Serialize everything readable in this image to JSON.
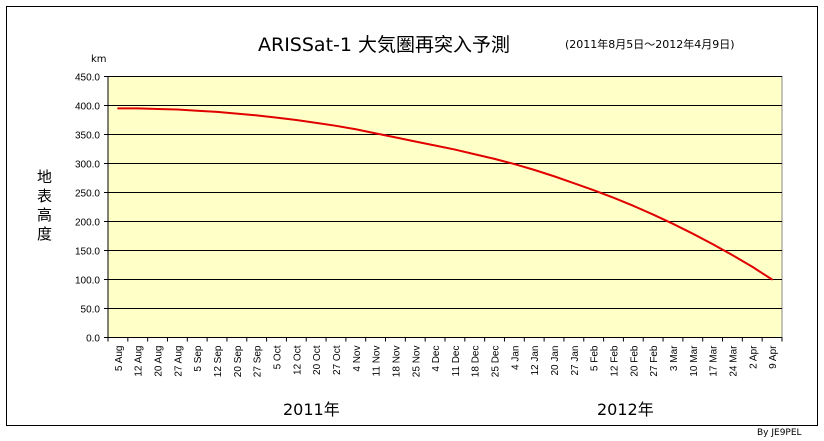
{
  "chart_data": {
    "type": "line",
    "title": "ARISSat-1 大気圏再突入予測",
    "subtitle": "(2011年8月5日～2012年4月9日)",
    "ylabel": "地表高度",
    "yunit": "km",
    "ylim": [
      0,
      450
    ],
    "yticks": [
      "0.0",
      "50.0",
      "100.0",
      "150.0",
      "200.0",
      "250.0",
      "300.0",
      "350.0",
      "400.0",
      "450.0"
    ],
    "grid": true,
    "categories": [
      "5 Aug",
      "12 Aug",
      "20 Aug",
      "27 Aug",
      "5 Sep",
      "12 Sep",
      "20 Sep",
      "27 Sep",
      "5 Oct",
      "12 Oct",
      "20 Oct",
      "27 Oct",
      "4 Nov",
      "11 Nov",
      "18 Nov",
      "25 Nov",
      "4 Dec",
      "11 Dec",
      "18 Dec",
      "25 Dec",
      "4 Jan",
      "12 Jan",
      "20 Jan",
      "27 Jan",
      "5 Feb",
      "12 Feb",
      "20 Feb",
      "27 Feb",
      "3 Mar",
      "10 Mar",
      "17 Mar",
      "24 Mar",
      "2 Apr",
      "9 Apr"
    ],
    "values": [
      395,
      395,
      394,
      393,
      391,
      389,
      386,
      383,
      379,
      375,
      370,
      365,
      359,
      352,
      345,
      338,
      331,
      324,
      316,
      308,
      299,
      289,
      278,
      266,
      254,
      241,
      227,
      212,
      196,
      179,
      161,
      142,
      122,
      100
    ],
    "year_labels": [
      "2011年",
      "2012年"
    ],
    "series_color": "#e00000",
    "plot_bg": "#ffffc8",
    "credit": "By JE9PEL"
  }
}
